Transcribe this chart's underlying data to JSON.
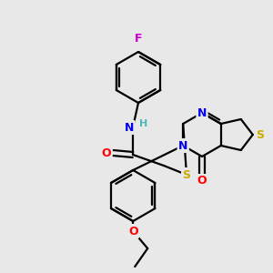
{
  "background_color": "#e8e8e8",
  "atom_colors": {
    "C": "#000000",
    "N": "#0000ee",
    "O": "#ff0000",
    "S": "#ccaa00",
    "F": "#cc00cc",
    "H": "#4db8b8"
  },
  "bond_color": "#000000",
  "bond_width": 1.6,
  "figsize": [
    3.0,
    3.0
  ],
  "dpi": 100
}
